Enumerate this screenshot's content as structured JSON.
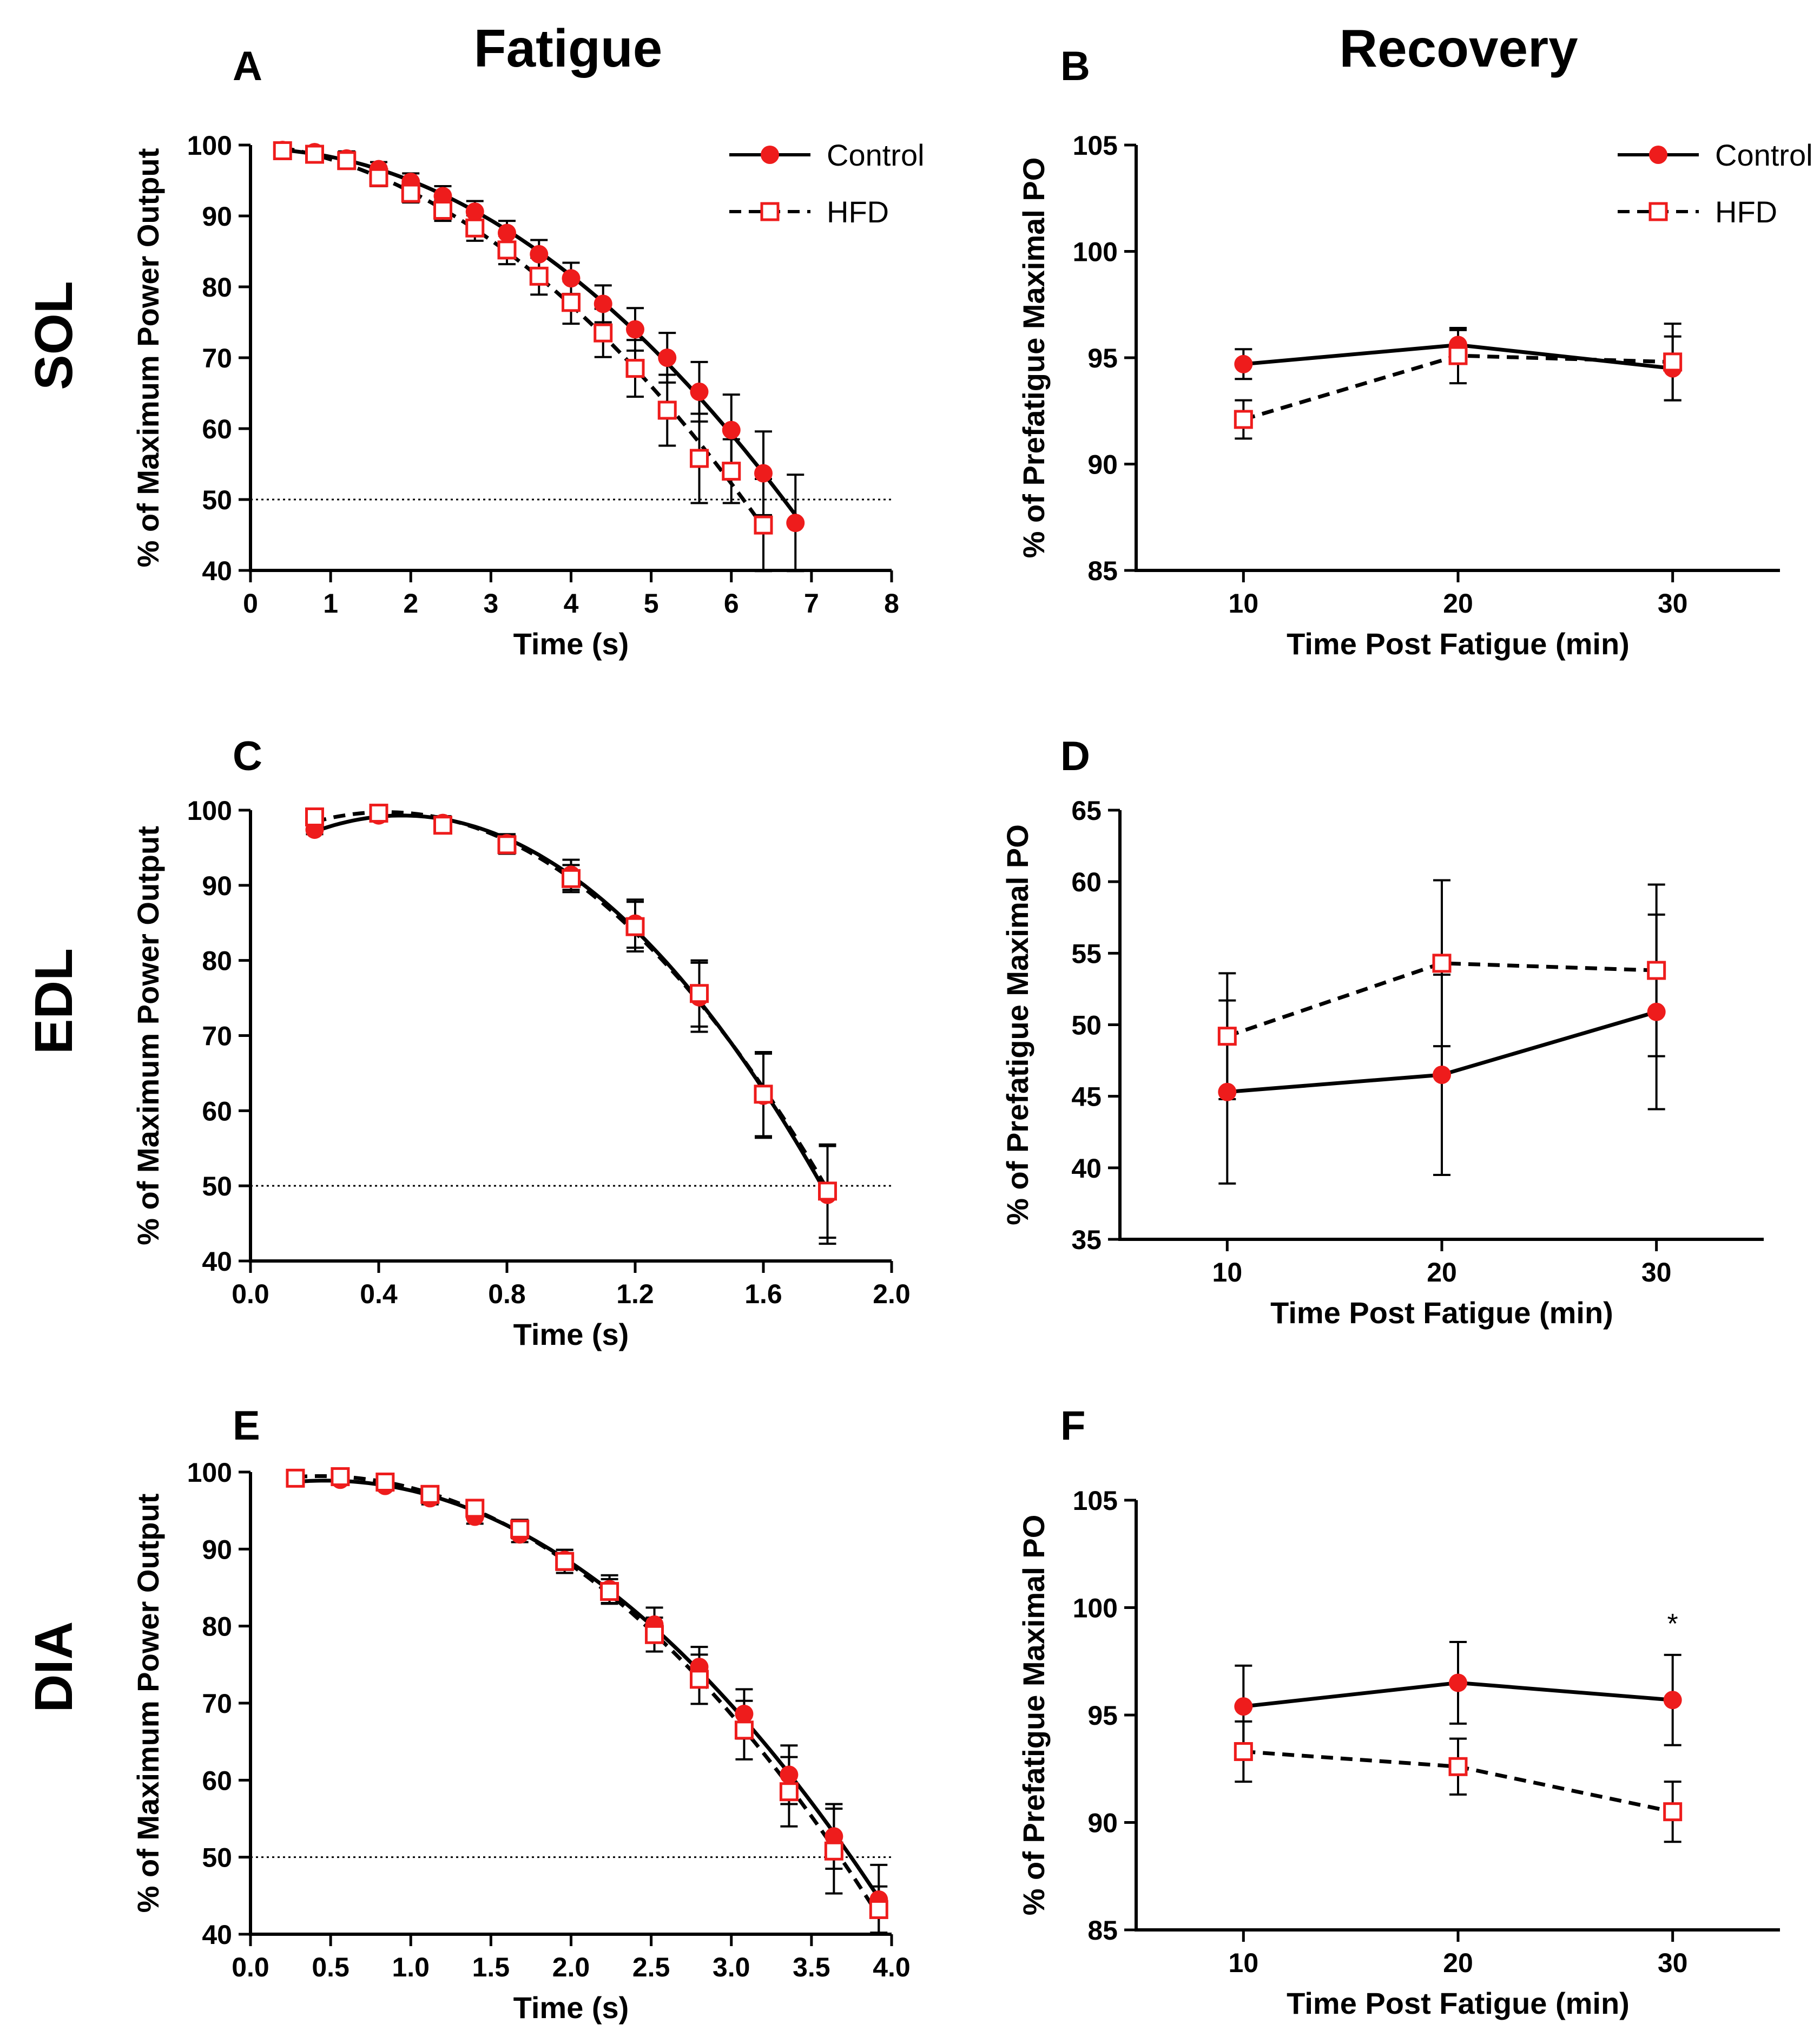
{
  "figure": {
    "column_titles": [
      "Fatigue",
      "Recovery"
    ],
    "row_labels": [
      "SOL",
      "EDL",
      "DIA"
    ]
  },
  "colors": {
    "control": "#ee1c1c",
    "hfd": "#ee1c1c",
    "line": "#000000",
    "reference": "#000000"
  },
  "chart_data": [
    {
      "panel": "A",
      "type": "line",
      "title": "",
      "xlabel": "Time (s)",
      "ylabel": "% of Maximum Power Output",
      "xlim": [
        0,
        8
      ],
      "ylim": [
        40,
        100
      ],
      "xticks": [
        0,
        1,
        2,
        3,
        4,
        5,
        6,
        7,
        8
      ],
      "xtick_labels": [
        "0",
        "1",
        "2",
        "3",
        "4",
        "5",
        "6",
        "7",
        "8"
      ],
      "yticks": [
        40,
        50,
        60,
        70,
        80,
        90,
        100
      ],
      "ytick_labels": [
        "40",
        "50",
        "60",
        "70",
        "80",
        "90",
        "100"
      ],
      "reference_line": 50,
      "legend": [
        "Control",
        "HFD"
      ],
      "legend_position": "top-right",
      "series": [
        {
          "name": "Control",
          "marker": "filled-circle",
          "line": "solid",
          "fit": "curve",
          "x": [
            0.4,
            0.8,
            1.2,
            1.6,
            2.0,
            2.4,
            2.8,
            3.2,
            3.6,
            4.0,
            4.4,
            4.8,
            5.2,
            5.6,
            6.0,
            6.4,
            6.8
          ],
          "y": [
            99.3,
            99.0,
            98.1,
            96.6,
            94.8,
            92.8,
            90.6,
            87.6,
            84.6,
            81.2,
            77.6,
            74.0,
            70.0,
            65.2,
            59.8,
            53.7,
            46.7
          ],
          "err": [
            0.8,
            0.8,
            1.0,
            1.0,
            1.2,
            1.4,
            1.5,
            1.7,
            2.0,
            2.2,
            2.6,
            3.0,
            3.5,
            4.2,
            5.0,
            5.9,
            6.8
          ]
        },
        {
          "name": "HFD",
          "marker": "open-square",
          "line": "dashed",
          "fit": "curve",
          "x": [
            0.4,
            0.8,
            1.2,
            1.6,
            2.0,
            2.4,
            2.8,
            3.2,
            3.6,
            4.0,
            4.4,
            4.8,
            5.2,
            5.6,
            6.0,
            6.4
          ],
          "y": [
            99.2,
            98.7,
            97.8,
            95.4,
            93.2,
            90.8,
            88.3,
            85.2,
            81.5,
            77.8,
            73.5,
            68.5,
            62.6,
            55.8,
            54.0,
            46.4
          ],
          "err": [
            0.8,
            0.9,
            1.0,
            1.2,
            1.3,
            1.5,
            1.8,
            2.0,
            2.6,
            3.0,
            3.4,
            4.0,
            5.0,
            6.3,
            4.5,
            6.5
          ]
        }
      ]
    },
    {
      "panel": "B",
      "type": "line",
      "title": "",
      "xlabel": "Time Post Fatigue (min)",
      "ylabel": "% of Prefatigue Maximal PO",
      "xlim": [
        5,
        35
      ],
      "ylim": [
        85,
        105
      ],
      "xticks": [
        10,
        20,
        30
      ],
      "xtick_labels": [
        "10",
        "20",
        "30"
      ],
      "yticks": [
        85,
        90,
        95,
        100,
        105
      ],
      "ytick_labels": [
        "85",
        "90",
        "95",
        "100",
        "105"
      ],
      "legend": [
        "Control",
        "HFD"
      ],
      "legend_position": "top-right",
      "series": [
        {
          "name": "Control",
          "marker": "filled-circle",
          "line": "solid",
          "x": [
            10,
            20,
            30
          ],
          "y": [
            94.7,
            95.6,
            94.5
          ],
          "err": [
            0.7,
            0.7,
            1.5
          ]
        },
        {
          "name": "HFD",
          "marker": "open-square",
          "line": "dashed",
          "x": [
            10,
            20,
            30
          ],
          "y": [
            92.1,
            95.1,
            94.8
          ],
          "err": [
            0.9,
            1.3,
            1.8
          ]
        }
      ]
    },
    {
      "panel": "C",
      "type": "line",
      "title": "",
      "xlabel": "Time (s)",
      "ylabel": "% of Maximum Power Output",
      "xlim": [
        0,
        2
      ],
      "ylim": [
        40,
        100
      ],
      "xticks": [
        0,
        0.4,
        0.8,
        1.2,
        1.6,
        2.0
      ],
      "xtick_labels": [
        "0.0",
        "0.4",
        "0.8",
        "1.2",
        "1.6",
        "2.0"
      ],
      "yticks": [
        40,
        50,
        60,
        70,
        80,
        90,
        100
      ],
      "ytick_labels": [
        "40",
        "50",
        "60",
        "70",
        "80",
        "90",
        "100"
      ],
      "reference_line": 50,
      "series": [
        {
          "name": "Control",
          "marker": "filled-circle",
          "line": "solid",
          "fit": "curve",
          "x": [
            0.2,
            0.4,
            0.6,
            0.8,
            1.0,
            1.2,
            1.4,
            1.6,
            1.8
          ],
          "y": [
            97.4,
            99.3,
            98.3,
            95.6,
            91.4,
            84.9,
            75.1,
            62.0,
            48.8
          ],
          "err": [
            0.6,
            0.6,
            0.9,
            1.2,
            2.0,
            3.2,
            4.6,
            5.6,
            6.5
          ]
        },
        {
          "name": "HFD",
          "marker": "open-square",
          "line": "dashed",
          "fit": "curve",
          "x": [
            0.2,
            0.4,
            0.6,
            0.8,
            1.0,
            1.2,
            1.4,
            1.6,
            1.8
          ],
          "y": [
            99.1,
            99.6,
            98.0,
            95.4,
            90.9,
            84.5,
            75.6,
            62.2,
            49.3
          ],
          "err": [
            0.6,
            0.6,
            0.8,
            1.2,
            1.8,
            3.3,
            4.4,
            5.6,
            6.2
          ]
        }
      ]
    },
    {
      "panel": "D",
      "type": "line",
      "title": "",
      "xlabel": "Time Post Fatigue (min)",
      "ylabel": "% of Prefatigue Maximal PO",
      "xlim": [
        5,
        35
      ],
      "ylim": [
        35,
        65
      ],
      "xticks": [
        10,
        20,
        30
      ],
      "xtick_labels": [
        "10",
        "20",
        "30"
      ],
      "yticks": [
        35,
        40,
        45,
        50,
        55,
        60,
        65
      ],
      "ytick_labels": [
        "35",
        "40",
        "45",
        "50",
        "55",
        "60",
        "65"
      ],
      "series": [
        {
          "name": "Control",
          "marker": "filled-circle",
          "line": "solid",
          "x": [
            10,
            20,
            30
          ],
          "y": [
            45.3,
            46.5,
            50.9
          ],
          "err": [
            6.4,
            7.0,
            6.8
          ]
        },
        {
          "name": "HFD",
          "marker": "open-square",
          "line": "dashed",
          "x": [
            10,
            20,
            30
          ],
          "y": [
            49.2,
            54.3,
            53.8
          ],
          "err": [
            4.4,
            5.8,
            6.0
          ]
        }
      ]
    },
    {
      "panel": "E",
      "type": "line",
      "title": "",
      "xlabel": "Time (s)",
      "ylabel": "% of Maximum Power Output",
      "xlim": [
        0,
        4
      ],
      "ylim": [
        40,
        100
      ],
      "xticks": [
        0,
        0.5,
        1.0,
        1.5,
        2.0,
        2.5,
        3.0,
        3.5,
        4.0
      ],
      "xtick_labels": [
        "0.0",
        "0.5",
        "1.0",
        "1.5",
        "2.0",
        "2.5",
        "3.0",
        "3.5",
        "4.0"
      ],
      "yticks": [
        40,
        50,
        60,
        70,
        80,
        90,
        100
      ],
      "ytick_labels": [
        "40",
        "50",
        "60",
        "70",
        "80",
        "90",
        "100"
      ],
      "reference_line": 50,
      "series": [
        {
          "name": "Control",
          "marker": "filled-circle",
          "line": "solid",
          "fit": "curve",
          "x": [
            0.28,
            0.56,
            0.84,
            1.12,
            1.4,
            1.68,
            1.96,
            2.24,
            2.52,
            2.8,
            3.08,
            3.36,
            3.64,
            3.92
          ],
          "y": [
            99.2,
            99.0,
            98.2,
            96.6,
            94.2,
            91.9,
            88.6,
            84.8,
            80.2,
            74.7,
            68.6,
            60.7,
            52.7,
            44.5
          ],
          "err": [
            0.5,
            0.5,
            0.6,
            0.8,
            0.9,
            1.0,
            1.3,
            1.8,
            2.2,
            2.6,
            3.2,
            3.8,
            4.2,
            4.5
          ]
        },
        {
          "name": "HFD",
          "marker": "open-square",
          "line": "dashed",
          "fit": "curve",
          "x": [
            0.28,
            0.56,
            0.84,
            1.12,
            1.4,
            1.68,
            1.96,
            2.24,
            2.52,
            2.8,
            3.08,
            3.36,
            3.64,
            3.92
          ],
          "y": [
            99.2,
            99.4,
            98.7,
            97.1,
            95.3,
            92.6,
            88.4,
            84.5,
            78.9,
            73.1,
            66.5,
            58.5,
            50.8,
            43.2
          ],
          "err": [
            0.5,
            0.5,
            0.6,
            0.8,
            1.0,
            1.2,
            1.5,
            1.6,
            2.2,
            3.2,
            3.8,
            4.5,
            5.5,
            3.0
          ]
        }
      ]
    },
    {
      "panel": "F",
      "type": "line",
      "title": "",
      "xlabel": "Time Post Fatigue (min)",
      "ylabel": "% of Prefatigue Maximal PO",
      "xlim": [
        5,
        35
      ],
      "ylim": [
        85,
        105
      ],
      "xticks": [
        10,
        20,
        30
      ],
      "xtick_labels": [
        "10",
        "20",
        "30"
      ],
      "yticks": [
        85,
        90,
        95,
        100,
        105
      ],
      "ytick_labels": [
        "85",
        "90",
        "95",
        "100",
        "105"
      ],
      "annotations": [
        {
          "text": "*",
          "x": 30,
          "y": 98.8
        }
      ],
      "series": [
        {
          "name": "Control",
          "marker": "filled-circle",
          "line": "solid",
          "x": [
            10,
            20,
            30
          ],
          "y": [
            95.4,
            96.5,
            95.7
          ],
          "err": [
            1.9,
            1.9,
            2.1
          ]
        },
        {
          "name": "HFD",
          "marker": "open-square",
          "line": "dashed",
          "x": [
            10,
            20,
            30
          ],
          "y": [
            93.3,
            92.6,
            90.5
          ],
          "err": [
            1.4,
            1.3,
            1.4
          ]
        }
      ]
    }
  ]
}
